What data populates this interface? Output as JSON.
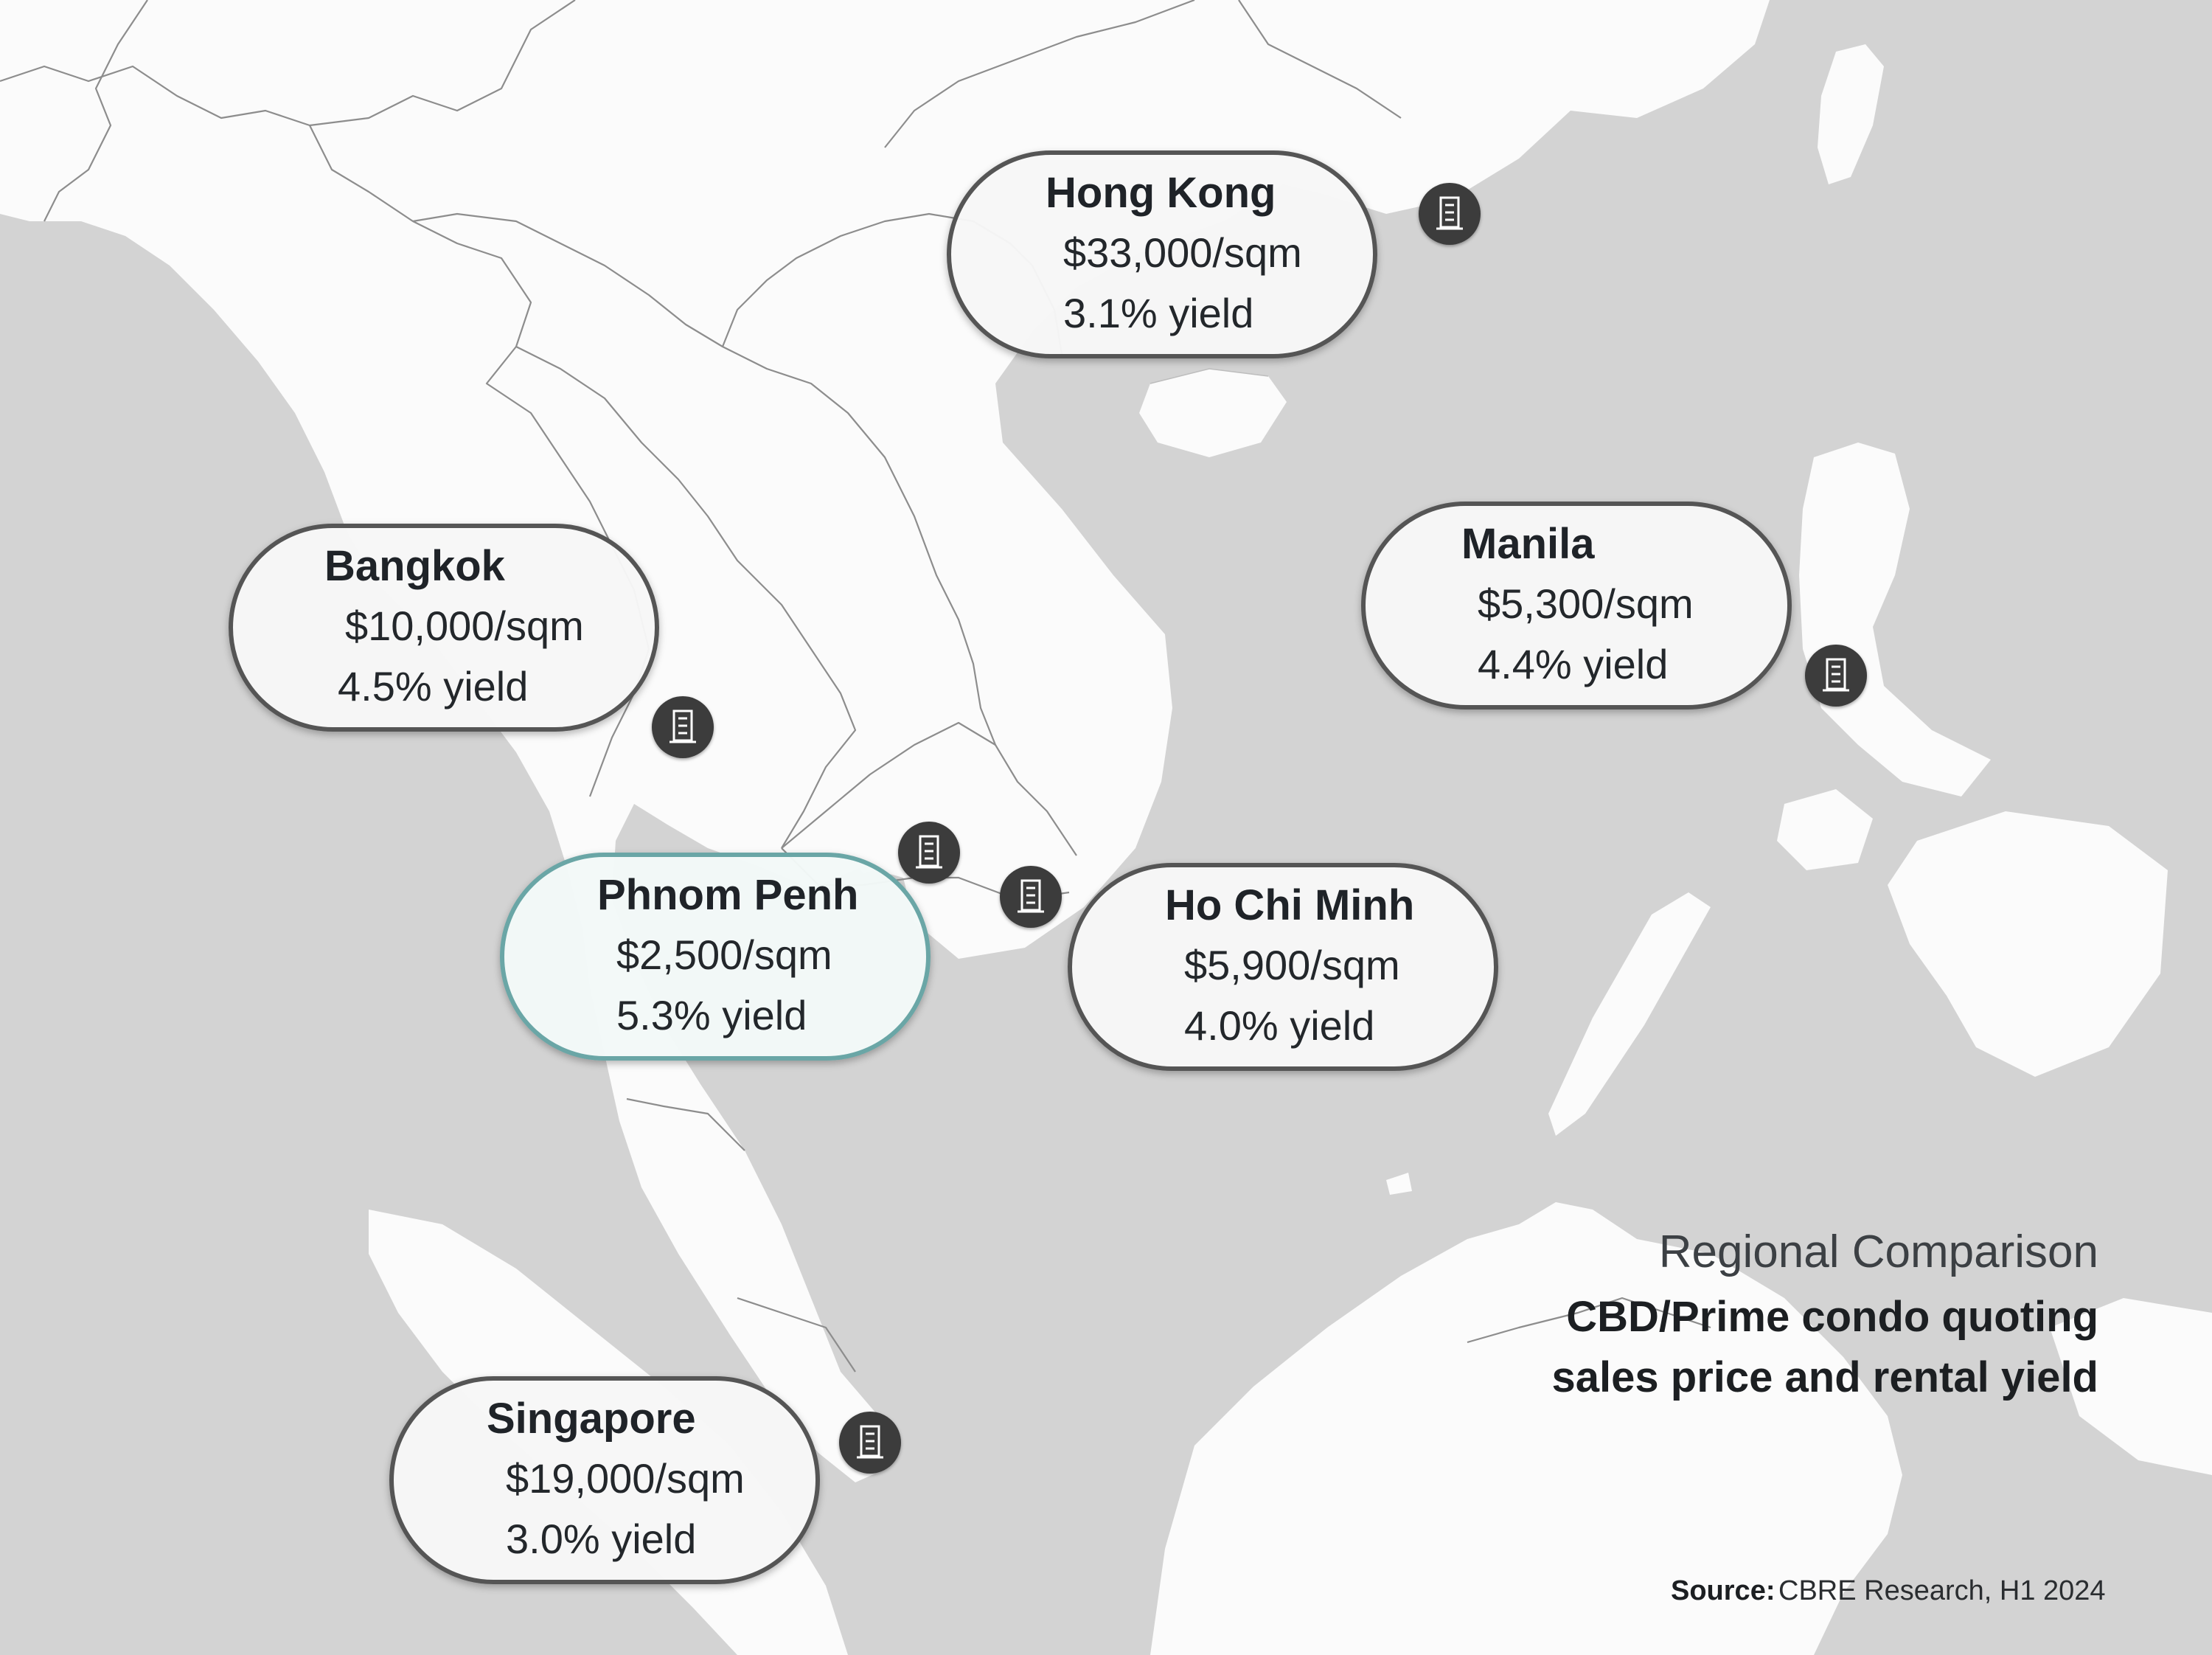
{
  "cities": [
    {
      "name": "Hong Kong",
      "price": "$33,000/sqm",
      "yield": "3.1% yield",
      "highlight": false
    },
    {
      "name": "Bangkok",
      "price": "$10,000/sqm",
      "yield": "4.5% yield",
      "highlight": false
    },
    {
      "name": "Manila",
      "price": "$5,300/sqm",
      "yield": "4.4% yield",
      "highlight": false
    },
    {
      "name": "Phnom Penh",
      "price": "$2,500/sqm",
      "yield": "5.3% yield",
      "highlight": true
    },
    {
      "name": "Ho Chi Minh",
      "price": "$5,900/sqm",
      "yield": "4.0% yield",
      "highlight": false
    },
    {
      "name": "Singapore",
      "price": "$19,000/sqm",
      "yield": "3.0% yield",
      "highlight": false
    }
  ],
  "legend": {
    "title": "Regional Comparison",
    "line1": "CBD/Prime condo quoting",
    "line2": "sales price and rental yield"
  },
  "source": {
    "label": "Source:",
    "value": "CBRE Research, H1 2024"
  },
  "colors": {
    "sea": "#d3d3d3",
    "land": "#fbfbfb",
    "border": "#555555",
    "highlight_border": "#6aa6a6",
    "marker": "#3c3c3c"
  },
  "icons": {
    "marker": "building-icon"
  }
}
